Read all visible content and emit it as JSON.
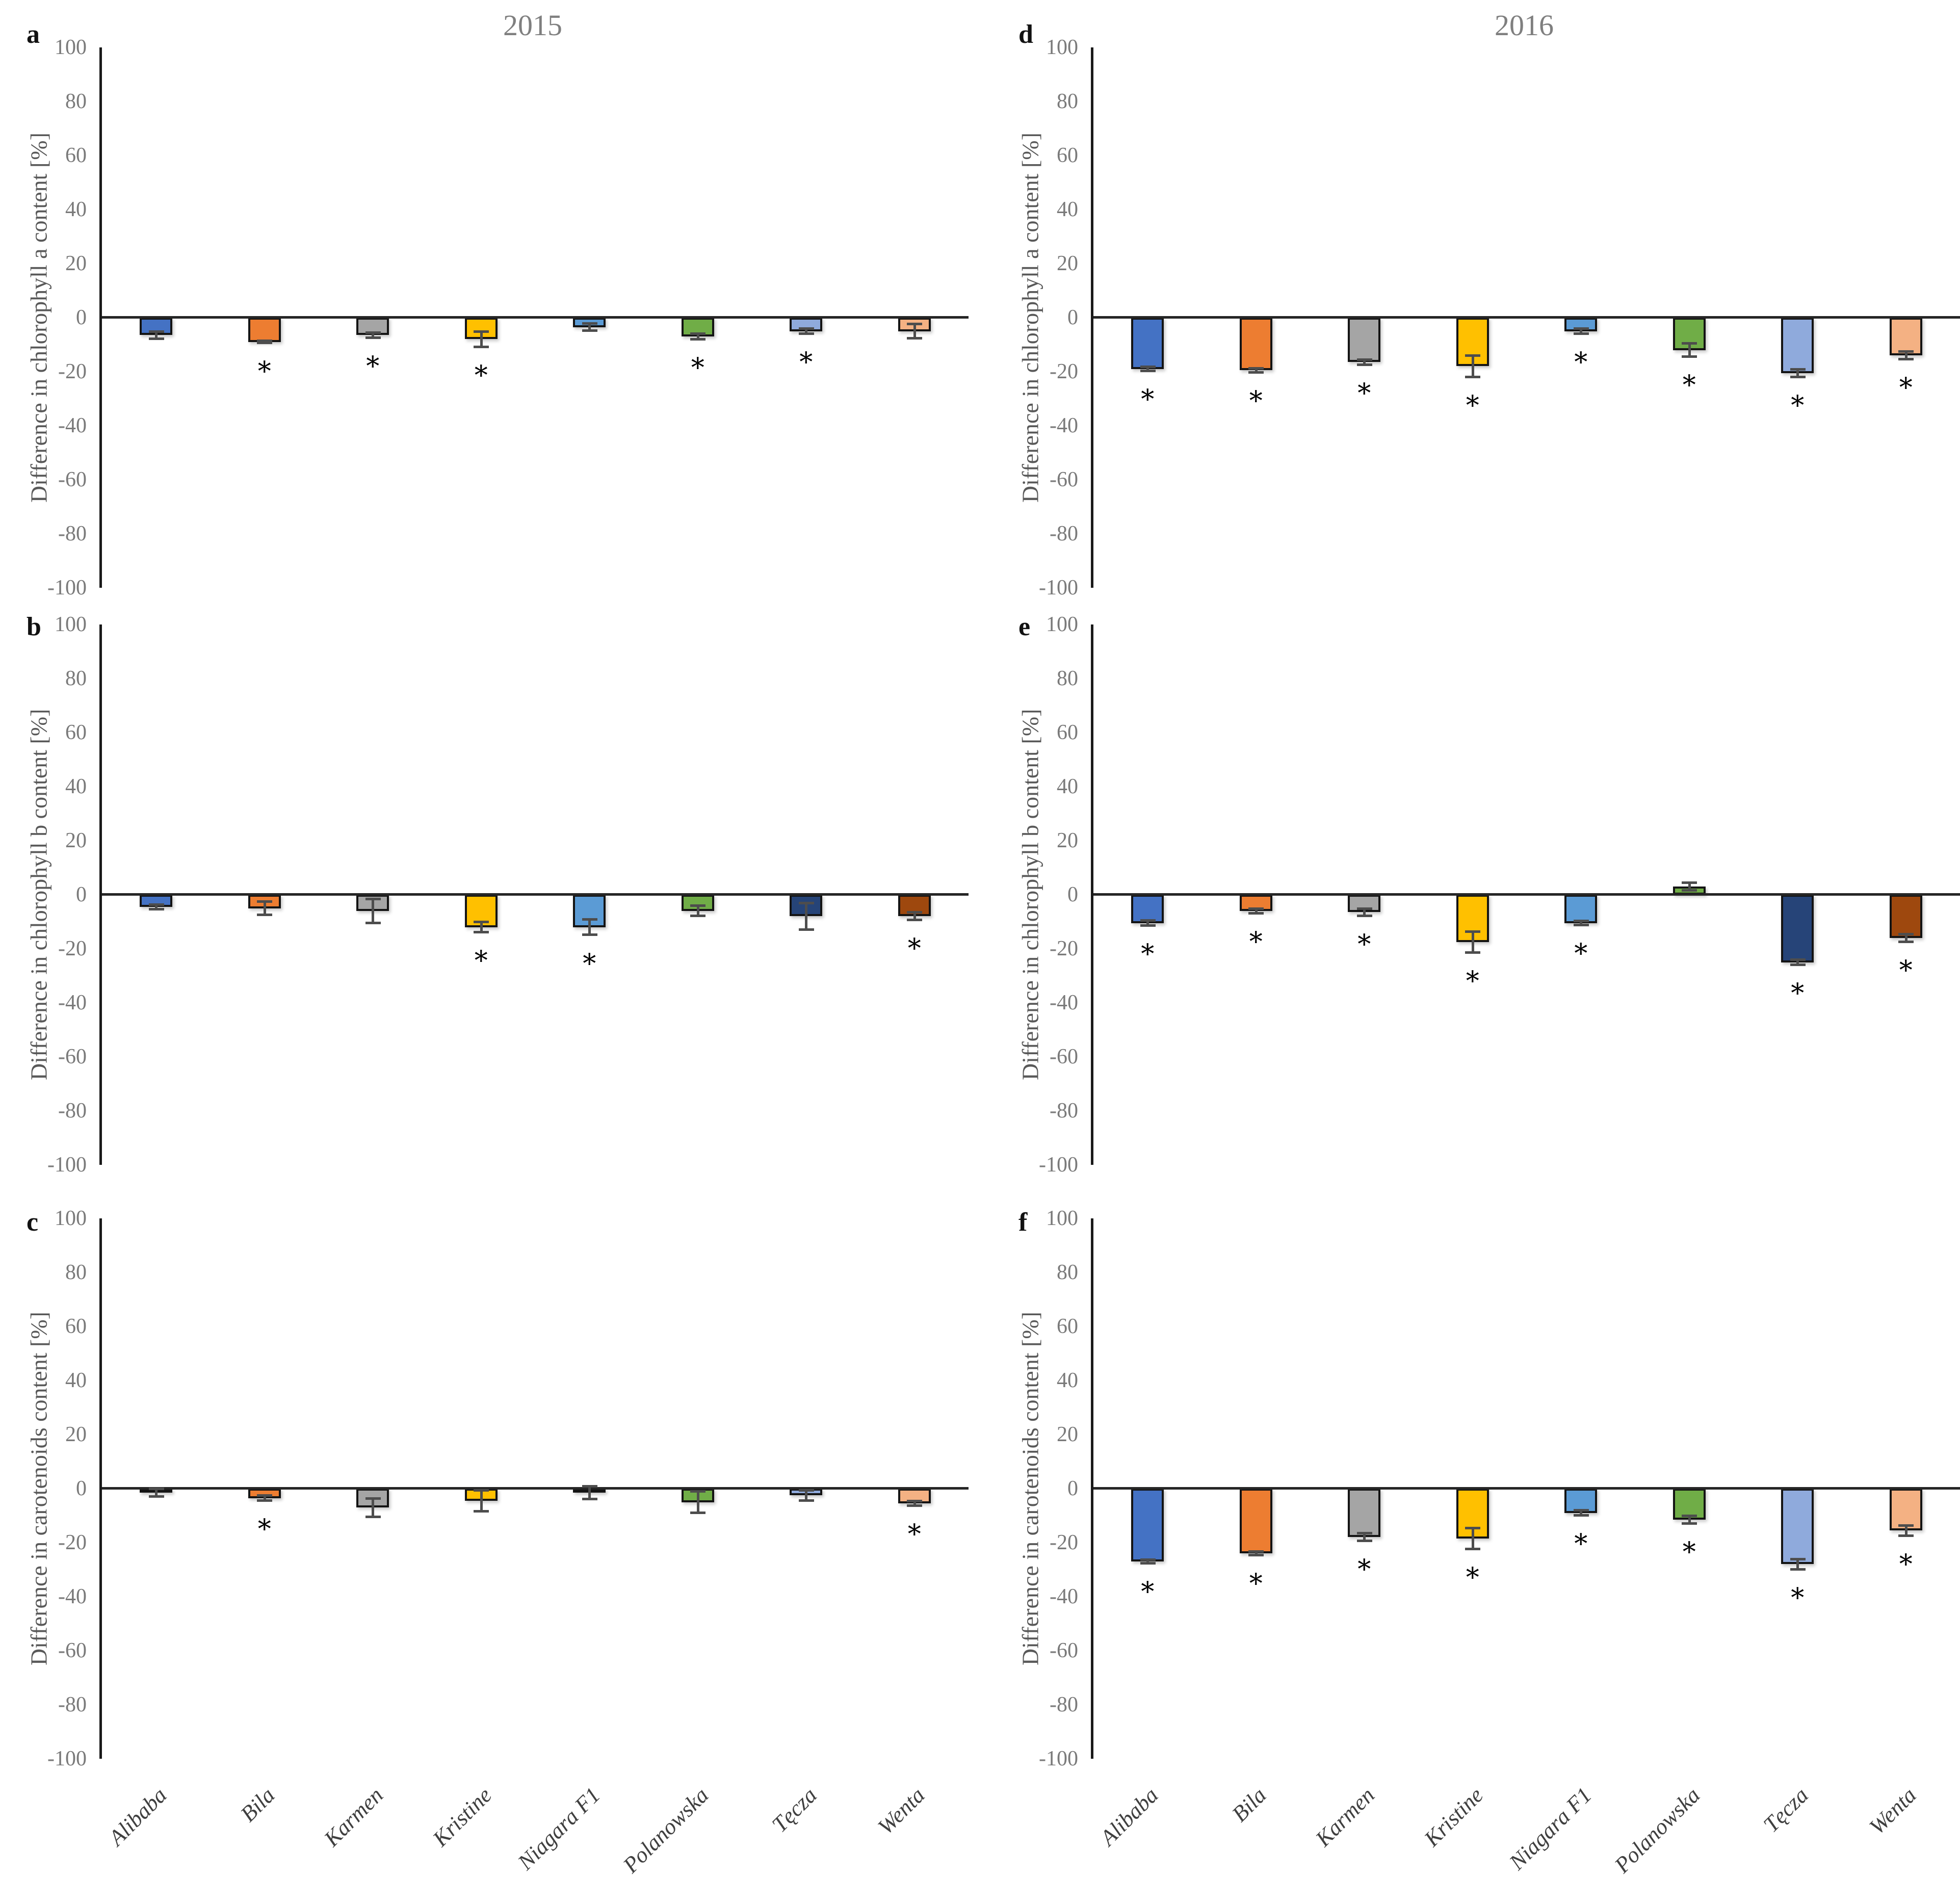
{
  "figure": {
    "columns": [
      {
        "year_title": "2015"
      },
      {
        "year_title": "2016"
      }
    ],
    "panel_letters": {
      "a": "a",
      "b": "b",
      "c": "c",
      "d": "d",
      "e": "e",
      "f": "f"
    },
    "text_color_axis": "#7a7a7a",
    "significance_marker": "*"
  },
  "categories": [
    "Alibaba",
    "Bila",
    "Karmen",
    "Kristine",
    "Niagara F1",
    "Polanowska",
    "Tęcza",
    "Wenta"
  ],
  "chart_data": [
    {
      "panel": "a",
      "year": "2015",
      "type": "bar",
      "ylabel": "Difference in chlorophyll a content [%]",
      "ylim": [
        -100,
        100
      ],
      "ytick_step": 20,
      "grid": false,
      "legend": "none",
      "categories": [
        "Alibaba",
        "Bila",
        "Karmen",
        "Kristine",
        "Niagara F1",
        "Polanowska",
        "Tęcza",
        "Wenta"
      ],
      "values": [
        -6.5,
        -9,
        -6.5,
        -8,
        -3.5,
        -7,
        -5,
        -5
      ],
      "errors": [
        1.5,
        0.5,
        1,
        3,
        1.5,
        1.2,
        1,
        2.8
      ],
      "significant": [
        false,
        true,
        true,
        true,
        false,
        true,
        true,
        false
      ],
      "colors": [
        "#4472C4",
        "#ED7D31",
        "#A5A5A5",
        "#FFC000",
        "#5B9BD5",
        "#70AD47",
        "#8FAADC",
        "#F4B183"
      ]
    },
    {
      "panel": "b",
      "year": "2015",
      "type": "bar",
      "ylabel": "Difference in chlorophyll b content [%]",
      "ylim": [
        -100,
        100
      ],
      "ytick_step": 20,
      "grid": false,
      "legend": "none",
      "categories": [
        "Alibaba",
        "Bila",
        "Karmen",
        "Kristine",
        "Niagara F1",
        "Polanowska",
        "Tęcza",
        "Wenta"
      ],
      "values": [
        -4.5,
        -5,
        -6,
        -12,
        -12,
        -6,
        -8,
        -8
      ],
      "errors": [
        1,
        2.5,
        4.5,
        2,
        3,
        2,
        5,
        1.5
      ],
      "significant": [
        false,
        false,
        false,
        true,
        true,
        false,
        false,
        true
      ],
      "colors": [
        "#4472C4",
        "#ED7D31",
        "#A5A5A5",
        "#FFC000",
        "#5B9BD5",
        "#70AD47",
        "#264478",
        "#9E480E"
      ]
    },
    {
      "panel": "c",
      "year": "2015",
      "type": "bar",
      "ylabel": "Difference in carotenoids content [%]",
      "ylim": [
        -100,
        100
      ],
      "ytick_step": 20,
      "grid": false,
      "legend": "none",
      "categories": [
        "Alibaba",
        "Bila",
        "Karmen",
        "Kristine",
        "Niagara F1",
        "Polanowska",
        "Tęcza",
        "Wenta"
      ],
      "values": [
        -1.5,
        -3.5,
        -7,
        -4.5,
        -1.5,
        -5,
        -2.5,
        -5.5
      ],
      "errors": [
        1.5,
        1,
        3.5,
        4,
        2.5,
        4,
        2,
        1
      ],
      "significant": [
        false,
        true,
        false,
        false,
        false,
        false,
        false,
        true
      ],
      "colors": [
        "#1F3050",
        "#ED7D31",
        "#A5A5A5",
        "#FFC000",
        "#5B9BD5",
        "#70AD47",
        "#8FAADC",
        "#F4B183"
      ]
    },
    {
      "panel": "d",
      "year": "2016",
      "type": "bar",
      "ylabel": "Difference in chlorophyll a content [%]",
      "ylim": [
        -100,
        100
      ],
      "ytick_step": 20,
      "grid": false,
      "legend": "none",
      "categories": [
        "Alibaba",
        "Bila",
        "Karmen",
        "Kristine",
        "Niagara F1",
        "Polanowska",
        "Tęcza",
        "Wenta"
      ],
      "values": [
        -19,
        -19.5,
        -16.5,
        -18,
        -5,
        -12,
        -20.5,
        -14
      ],
      "errors": [
        0.8,
        0.8,
        1,
        4,
        1,
        2.5,
        1.5,
        1.5
      ],
      "significant": [
        true,
        true,
        true,
        true,
        true,
        true,
        true,
        true
      ],
      "colors": [
        "#4472C4",
        "#ED7D31",
        "#A5A5A5",
        "#FFC000",
        "#5B9BD5",
        "#70AD47",
        "#8FAADC",
        "#F4B183"
      ]
    },
    {
      "panel": "e",
      "year": "2016",
      "type": "bar",
      "ylabel": "Difference in chlorophyll b content [%]",
      "ylim": [
        -100,
        100
      ],
      "ytick_step": 20,
      "grid": false,
      "legend": "none",
      "categories": [
        "Alibaba",
        "Bila",
        "Karmen",
        "Kristine",
        "Niagara F1",
        "Polanowska",
        "Tęcza",
        "Wenta"
      ],
      "values": [
        -10.5,
        -6,
        -6.5,
        -17.5,
        -10.5,
        3,
        -25,
        -16
      ],
      "errors": [
        1,
        1,
        1.5,
        4,
        0.8,
        1.5,
        1,
        1.5
      ],
      "significant": [
        true,
        true,
        true,
        true,
        true,
        false,
        true,
        true
      ],
      "colors": [
        "#4472C4",
        "#ED7D31",
        "#A5A5A5",
        "#FFC000",
        "#5B9BD5",
        "#70AD47",
        "#264478",
        "#9E480E"
      ]
    },
    {
      "panel": "f",
      "year": "2016",
      "type": "bar",
      "ylabel": "Difference in carotenoids content [%]",
      "ylim": [
        -100,
        100
      ],
      "ytick_step": 20,
      "grid": false,
      "legend": "none",
      "categories": [
        "Alibaba",
        "Bila",
        "Karmen",
        "Kristine",
        "Niagara F1",
        "Polanowska",
        "Tęcza",
        "Wenta"
      ],
      "values": [
        -27,
        -24,
        -18,
        -18.5,
        -9,
        -11.5,
        -28,
        -15.5
      ],
      "errors": [
        0.7,
        0.7,
        1.5,
        4,
        1,
        1.5,
        2,
        2
      ],
      "significant": [
        true,
        true,
        true,
        true,
        true,
        true,
        true,
        true
      ],
      "colors": [
        "#4472C4",
        "#ED7D31",
        "#A5A5A5",
        "#FFC000",
        "#5B9BD5",
        "#70AD47",
        "#8FAADC",
        "#F4B183"
      ]
    }
  ]
}
